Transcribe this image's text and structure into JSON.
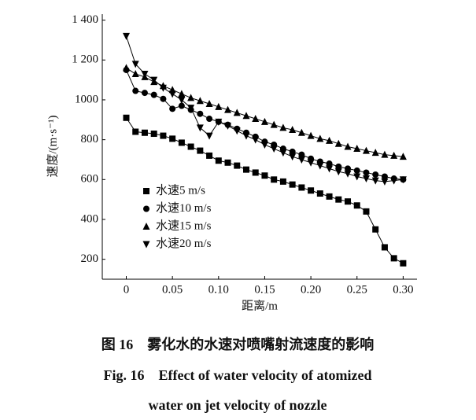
{
  "chart_data": {
    "type": "line",
    "y_label": "速度/(m·s⁻¹)",
    "x_label": "距离/m",
    "caption": [
      "图 16　雾化水的水速对喷嘴射流速度的影响",
      "Fig. 16　Effect of water velocity of atomized",
      "water on jet velocity of nozzle"
    ],
    "x": [
      0,
      0.01,
      0.02,
      0.03,
      0.04,
      0.05,
      0.06,
      0.07,
      0.08,
      0.09,
      0.1,
      0.11,
      0.12,
      0.13,
      0.14,
      0.15,
      0.16,
      0.17,
      0.18,
      0.19,
      0.2,
      0.21,
      0.22,
      0.23,
      0.24,
      0.25,
      0.26,
      0.27,
      0.28,
      0.29,
      0.3
    ],
    "series": [
      {
        "name": "水速5 m/s",
        "color": "#000000",
        "marker": "square",
        "values": [
          910,
          840,
          835,
          830,
          820,
          805,
          785,
          765,
          745,
          720,
          695,
          685,
          670,
          650,
          635,
          620,
          600,
          590,
          575,
          560,
          545,
          530,
          515,
          500,
          490,
          470,
          440,
          350,
          260,
          205,
          180
        ]
      },
      {
        "name": "水速10 m/s",
        "color": "#000000",
        "marker": "circle",
        "values": [
          1150,
          1045,
          1035,
          1025,
          1005,
          955,
          970,
          950,
          930,
          905,
          890,
          875,
          855,
          835,
          815,
          790,
          775,
          755,
          740,
          725,
          705,
          690,
          680,
          665,
          655,
          645,
          635,
          625,
          615,
          605,
          600
        ]
      },
      {
        "name": "水速15 m/s",
        "color": "#000000",
        "marker": "triangle-up",
        "values": [
          1160,
          1130,
          1115,
          1090,
          1070,
          1050,
          1030,
          1010,
          995,
          980,
          965,
          950,
          935,
          920,
          905,
          890,
          875,
          860,
          850,
          835,
          820,
          805,
          795,
          780,
          765,
          755,
          745,
          735,
          725,
          720,
          715
        ]
      },
      {
        "name": "水速20 m/s",
        "color": "#000000",
        "marker": "triangle-down",
        "values": [
          1320,
          1180,
          1130,
          1100,
          1060,
          1030,
          1000,
          960,
          860,
          820,
          890,
          870,
          845,
          820,
          800,
          775,
          755,
          735,
          715,
          700,
          685,
          670,
          655,
          640,
          630,
          615,
          605,
          595,
          590,
          595,
          600
        ]
      }
    ],
    "xlim": [
      -0.026,
      0.315
    ],
    "ylim": [
      100,
      1430
    ],
    "xticks": [
      {
        "value": 0,
        "label": "0"
      },
      0.05,
      {
        "value": 0.1,
        "label": "0.10"
      },
      0.15,
      {
        "value": 0.2,
        "label": "0.20"
      },
      0.25,
      {
        "value": 0.3,
        "label": "0.30"
      }
    ],
    "yticks": [
      200,
      400,
      600,
      800,
      1000,
      {
        "value": 1200,
        "label": "1 200"
      },
      {
        "value": 1400,
        "label": "1 400"
      }
    ],
    "legend": "lower-left"
  }
}
